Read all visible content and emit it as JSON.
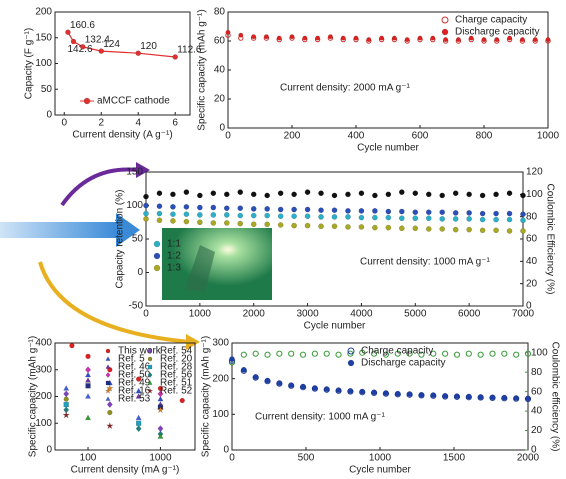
{
  "chart_data": [
    {
      "type": "line",
      "x_label": "Current density (A g⁻¹)",
      "y_label": "Capacity (F g⁻¹)",
      "xlim": [
        -0.5,
        6.8
      ],
      "xticks": [
        0,
        2,
        4,
        6
      ],
      "ylim": [
        0,
        200
      ],
      "yticks": [
        0,
        50,
        100,
        150,
        200
      ],
      "legend": "lower right",
      "data_labels": true,
      "series": [
        {
          "name": "aMCCF cathode",
          "color": "#e03030",
          "marker": "circle",
          "line": true,
          "x": [
            0.2,
            0.5,
            1,
            2,
            4,
            6
          ],
          "values": [
            160.6,
            142.6,
            132.4,
            124,
            120,
            112.6
          ]
        }
      ]
    },
    {
      "type": "scatter",
      "x_label": "Cycle number",
      "y_label": "Specific capacity (mAh g⁻¹)",
      "annotation": "Current density: 2000 mA g⁻¹",
      "xlim": [
        0,
        1000
      ],
      "xticks": [
        0,
        200,
        400,
        600,
        800,
        1000
      ],
      "ylim": [
        0,
        80
      ],
      "yticks": [
        0,
        20,
        40,
        60,
        80
      ],
      "legend": "upper right",
      "series": [
        {
          "name": "Charge capacity",
          "color": "#d03030",
          "marker": "circle-open",
          "x": [
            0,
            40,
            80,
            120,
            160,
            200,
            240,
            280,
            320,
            360,
            400,
            440,
            480,
            520,
            560,
            600,
            640,
            680,
            720,
            760,
            800,
            840,
            880,
            920,
            960,
            1000
          ],
          "values": [
            64,
            62,
            62,
            62,
            61,
            62,
            61,
            61,
            62,
            61,
            61,
            60,
            61,
            61,
            60,
            61,
            61,
            60,
            60,
            61,
            60,
            60,
            61,
            60,
            60,
            60
          ]
        },
        {
          "name": "Discharge capacity",
          "color": "#e02020",
          "marker": "circle",
          "x": [
            0,
            40,
            80,
            120,
            160,
            200,
            240,
            280,
            320,
            360,
            400,
            440,
            480,
            520,
            560,
            600,
            640,
            680,
            720,
            760,
            800,
            840,
            880,
            920,
            960,
            1000
          ],
          "values": [
            66,
            64,
            63,
            63,
            62,
            63,
            62,
            62,
            63,
            62,
            62,
            61,
            62,
            62,
            61,
            62,
            62,
            61,
            61,
            62,
            61,
            61,
            62,
            61,
            61,
            61
          ]
        }
      ]
    },
    {
      "type": "scatter",
      "x_label": "Cycle number",
      "y_label": "Capacity retention (%)",
      "y2_label": "Coulombic Efficiency (%)",
      "annotation": "Current density: 1000 mA g⁻¹",
      "xlim": [
        0,
        7000
      ],
      "xticks": [
        0,
        1000,
        2000,
        3000,
        4000,
        5000,
        6000,
        7000
      ],
      "ylim": [
        -50,
        150
      ],
      "yticks": [
        -50,
        0,
        50,
        100,
        150
      ],
      "y2lim": [
        0,
        120
      ],
      "y2ticks": [
        0,
        20,
        40,
        60,
        80,
        100,
        120
      ],
      "legend": "center left",
      "series": [
        {
          "color": "#111111",
          "marker": "circle",
          "axis": "y2",
          "x": [
            0,
            250,
            500,
            750,
            1000,
            1250,
            1500,
            1750,
            2000,
            2250,
            2500,
            2750,
            3000,
            3250,
            3500,
            3750,
            4000,
            4250,
            4500,
            4750,
            5000,
            5250,
            5500,
            5750,
            6000,
            6250,
            6500,
            6750,
            7000
          ],
          "values": [
            98,
            101,
            100,
            102,
            99,
            101,
            100,
            102,
            100,
            99,
            101,
            100,
            102,
            101,
            99,
            100,
            101,
            99,
            100,
            102,
            101,
            100,
            99,
            101,
            100,
            99,
            100,
            101,
            99
          ]
        },
        {
          "name": "1:1",
          "color": "#2bb0c8",
          "marker": "circle",
          "x": [
            0,
            250,
            500,
            750,
            1000,
            1250,
            1500,
            1750,
            2000,
            2250,
            2500,
            2750,
            3000,
            3250,
            3500,
            3750,
            4000,
            4250,
            4500,
            4750,
            5000,
            5250,
            5500,
            5750,
            6000,
            6250,
            6500,
            6750,
            7000
          ],
          "values": [
            88,
            88,
            87,
            87,
            86,
            86,
            86,
            85,
            85,
            85,
            84,
            84,
            84,
            83,
            83,
            83,
            82,
            82,
            82,
            81,
            81,
            81,
            80,
            80,
            80,
            79,
            79,
            79,
            78
          ]
        },
        {
          "name": "1:2",
          "color": "#2a4fb8",
          "marker": "circle",
          "x": [
            0,
            250,
            500,
            750,
            1000,
            1250,
            1500,
            1750,
            2000,
            2250,
            2500,
            2750,
            3000,
            3250,
            3500,
            3750,
            4000,
            4250,
            4500,
            4750,
            5000,
            5250,
            5500,
            5750,
            6000,
            6250,
            6500,
            6750,
            7000
          ],
          "values": [
            100,
            99,
            98,
            98,
            97,
            97,
            96,
            96,
            95,
            95,
            94,
            94,
            94,
            93,
            93,
            92,
            92,
            92,
            91,
            91,
            90,
            90,
            90,
            89,
            89,
            88,
            88,
            88,
            87
          ]
        },
        {
          "name": "1:3",
          "color": "#a8a824",
          "marker": "circle",
          "x": [
            0,
            250,
            500,
            750,
            1000,
            1250,
            1500,
            1750,
            2000,
            2250,
            2500,
            2750,
            3000,
            3250,
            3500,
            3750,
            4000,
            4250,
            4500,
            4750,
            5000,
            5250,
            5500,
            5750,
            6000,
            6250,
            6500,
            6750,
            7000
          ],
          "values": [
            80,
            78,
            77,
            76,
            75,
            74,
            74,
            73,
            72,
            72,
            71,
            70,
            70,
            69,
            69,
            68,
            68,
            67,
            67,
            66,
            66,
            65,
            65,
            64,
            64,
            63,
            63,
            62,
            62
          ]
        }
      ]
    },
    {
      "type": "scatter",
      "x_label": "Current density (mA g⁻¹)",
      "y_label": "Specific capacity (mAh g⁻¹)",
      "log_x": true,
      "xlim": [
        35,
        3000
      ],
      "xticks": [
        100,
        1000
      ],
      "ylim": [
        0,
        400
      ],
      "yticks": [
        0,
        100,
        200,
        300,
        400
      ],
      "legend": "upper right",
      "series": [
        {
          "name": "This work",
          "color": "#e02020",
          "marker": "circle",
          "x": [
            60,
            100,
            200,
            500,
            1000,
            2000
          ],
          "values": [
            390,
            350,
            300,
            265,
            230,
            185
          ]
        },
        {
          "name": "Ref. 5",
          "color": "#3050d0",
          "marker": "triangle",
          "x": [
            100,
            200,
            500,
            1000
          ],
          "values": [
            280,
            250,
            220,
            190
          ]
        },
        {
          "name": "Ref. 46",
          "color": "#7030a0",
          "marker": "triangle",
          "x": [
            100,
            500,
            1000
          ],
          "values": [
            260,
            200,
            170
          ]
        },
        {
          "name": "Ref. 50",
          "color": "#d030b0",
          "marker": "diamond",
          "x": [
            100,
            1000
          ],
          "values": [
            300,
            210
          ]
        },
        {
          "name": "Ref. 49",
          "color": "#203080",
          "marker": "square",
          "x": [
            100,
            1000
          ],
          "values": [
            240,
            160
          ]
        },
        {
          "name": "Ref. 16",
          "color": "#e08020",
          "marker": "star",
          "x": [
            200,
            1000
          ],
          "values": [
            230,
            150
          ]
        },
        {
          "name": "Ref. 53",
          "color": "#4060e0",
          "marker": "triangle",
          "x": [
            50,
            100,
            500
          ],
          "values": [
            230,
            200,
            120
          ]
        },
        {
          "name": "Ref. 54",
          "color": "#8040c0",
          "marker": "diamond",
          "x": [
            50,
            200,
            1000
          ],
          "values": [
            210,
            170,
            80
          ]
        },
        {
          "name": "Ref. 20",
          "color": "#909020",
          "marker": "circle",
          "x": [
            50,
            200
          ],
          "values": [
            190,
            140
          ]
        },
        {
          "name": "Ref. 28",
          "color": "#20a0c0",
          "marker": "square",
          "x": [
            50,
            500
          ],
          "values": [
            170,
            100
          ]
        },
        {
          "name": "Ref. 56",
          "color": "#208080",
          "marker": "diamond",
          "x": [
            50,
            500,
            1000
          ],
          "values": [
            150,
            80,
            60
          ]
        },
        {
          "name": "Ref. 51",
          "color": "#30a030",
          "marker": "triangle",
          "x": [
            100,
            1000
          ],
          "values": [
            120,
            50
          ]
        },
        {
          "name": "Ref. 52",
          "color": "#902020",
          "marker": "star",
          "x": [
            50,
            200
          ],
          "values": [
            130,
            90
          ]
        }
      ]
    },
    {
      "type": "scatter",
      "x_label": "Cycle number",
      "y_label": "Specific capacity (mAh g⁻¹)",
      "y2_label": "Coulombic efficiency (%)",
      "y2_color": "#3a9a3a",
      "annotation": "Current density: 1000 mA g⁻¹",
      "xlim": [
        0,
        2000
      ],
      "xticks": [
        0,
        500,
        1000,
        1500,
        2000
      ],
      "ylim": [
        0,
        300
      ],
      "yticks": [
        0,
        100,
        200,
        300
      ],
      "y2lim": [
        0,
        110
      ],
      "y2ticks": [
        0,
        20,
        40,
        60,
        80,
        100
      ],
      "legend": "upper center",
      "series": [
        {
          "color": "#3a9a3a",
          "marker": "circle-open",
          "axis": "y2",
          "x": [
            0,
            80,
            160,
            240,
            320,
            400,
            480,
            560,
            640,
            720,
            800,
            880,
            960,
            1040,
            1120,
            1200,
            1280,
            1360,
            1440,
            1520,
            1600,
            1680,
            1760,
            1840,
            1920,
            2000
          ],
          "values": [
            90,
            98,
            99,
            98,
            99,
            99,
            98,
            99,
            99,
            98,
            99,
            100,
            99,
            98,
            99,
            99,
            98,
            99,
            99,
            98,
            99,
            98,
            99,
            99,
            98,
            99
          ]
        },
        {
          "name": "Charge capacity",
          "color": "#2040a0",
          "marker": "circle-open",
          "x": [
            0,
            80,
            160,
            240,
            320,
            400,
            480,
            560,
            640,
            720,
            800,
            880,
            960,
            1040,
            1120,
            1200,
            1280,
            1360,
            1440,
            1520,
            1600,
            1680,
            1760,
            1840,
            1920,
            2000
          ],
          "values": [
            250,
            222,
            203,
            193,
            186,
            180,
            176,
            172,
            169,
            166,
            164,
            162,
            160,
            158,
            156,
            155,
            153,
            152,
            150,
            149,
            148,
            147,
            146,
            145,
            144,
            143
          ]
        },
        {
          "name": "Discharge capacity",
          "color": "#1f3fa8",
          "marker": "circle",
          "x": [
            0,
            80,
            160,
            240,
            320,
            400,
            480,
            560,
            640,
            720,
            800,
            880,
            960,
            1040,
            1120,
            1200,
            1280,
            1360,
            1440,
            1520,
            1600,
            1680,
            1760,
            1840,
            1920,
            2000
          ],
          "values": [
            255,
            225,
            205,
            195,
            188,
            182,
            178,
            174,
            171,
            168,
            166,
            164,
            162,
            160,
            158,
            157,
            155,
            154,
            152,
            151,
            150,
            149,
            148,
            147,
            146,
            145
          ]
        }
      ]
    }
  ]
}
